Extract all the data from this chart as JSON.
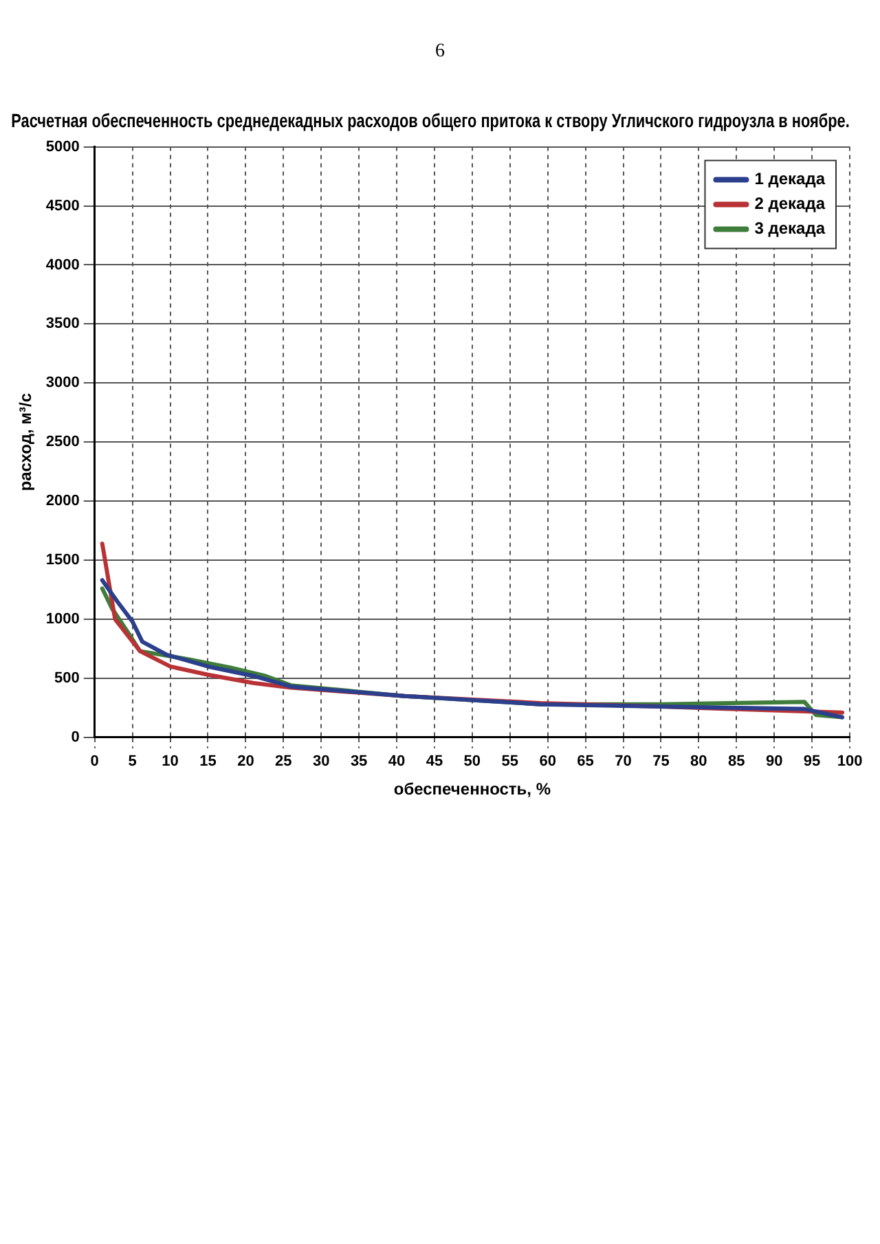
{
  "chart_data": {
    "type": "line",
    "title": "Расчетная обеспеченность среднедекадных расходов общего притока к створу Угличского гидроузла в ноябре.",
    "xlabel": "обеспеченность, %",
    "ylabel": "расход, м³/с",
    "annotations": [
      "6"
    ],
    "xlim": [
      0,
      100
    ],
    "xticks": [
      0,
      5,
      10,
      15,
      20,
      25,
      30,
      35,
      40,
      45,
      50,
      55,
      60,
      65,
      70,
      75,
      80,
      85,
      90,
      95,
      100
    ],
    "ylim": [
      0,
      5000
    ],
    "yticks": [
      0,
      500,
      1000,
      1500,
      2000,
      2500,
      3000,
      3500,
      4000,
      4500,
      5000
    ],
    "grid": true,
    "legend": "top right",
    "line_style": "solid",
    "marker": "none",
    "series": [
      {
        "name": "1 декада",
        "color": "#2b3f8c",
        "x": [
          1,
          3,
          5,
          6.3,
          9.5,
          15,
          21,
          26,
          41,
          59,
          75,
          94,
          99
        ],
        "values": [
          1330,
          1150,
          980,
          810,
          700,
          600,
          520,
          430,
          350,
          280,
          260,
          240,
          170
        ]
      },
      {
        "name": "2 декада",
        "color": "#b83236",
        "x": [
          1,
          2.7,
          6,
          10,
          15,
          21,
          26,
          41,
          59,
          75,
          94,
          99
        ],
        "values": [
          1640,
          1000,
          730,
          600,
          530,
          460,
          420,
          350,
          290,
          260,
          220,
          210
        ]
      },
      {
        "name": "3 декада",
        "color": "#3f7d3a",
        "x": [
          1,
          2.3,
          4.5,
          6,
          12.5,
          18,
          22.6,
          26,
          41,
          59,
          75,
          94,
          95.5,
          99
        ],
        "values": [
          1260,
          1090,
          880,
          730,
          660,
          590,
          520,
          440,
          350,
          280,
          280,
          300,
          190,
          170
        ]
      }
    ]
  }
}
